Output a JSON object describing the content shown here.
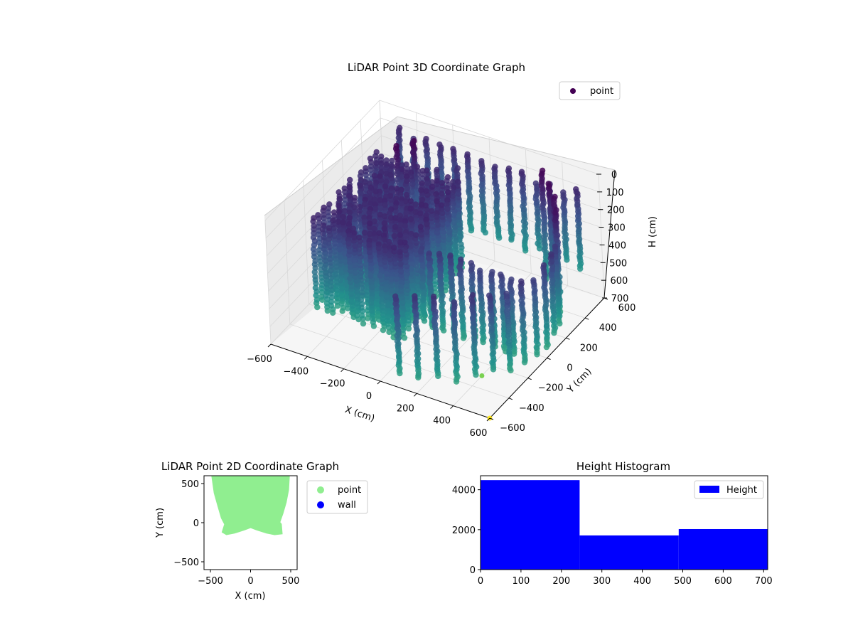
{
  "chart_data": [
    {
      "type": "scatter",
      "projection": "3d",
      "title": "LiDAR Point 3D Coordinate Graph",
      "xlabel": "X (cm)",
      "ylabel": "Y (cm)",
      "zlabel": "H (cm)",
      "xlim": [
        -600,
        600
      ],
      "ylim": [
        -600,
        600
      ],
      "zlim": [
        0,
        700
      ],
      "z_inverted": true,
      "xticks": [
        "−600",
        "−400",
        "−200",
        "0",
        "200",
        "400",
        "600"
      ],
      "yticks": [
        "−600",
        "−400",
        "−200",
        "0",
        "200",
        "400",
        "600"
      ],
      "zticks": [
        "0",
        "100",
        "200",
        "300",
        "400",
        "500",
        "600",
        "700"
      ],
      "colormap": "viridis",
      "legend": {
        "position": "upper-right",
        "entries": [
          {
            "name": "point",
            "color": "#440154"
          }
        ]
      },
      "structures": {
        "front_block": {
          "x_range": [
            -500,
            0
          ],
          "y_range": [
            -300,
            400
          ],
          "h_range": [
            120,
            650
          ]
        },
        "wall_rows": [
          {
            "y": -150,
            "x_range": [
              -50,
              500
            ],
            "h_range": [
              180,
              640
            ]
          },
          {
            "y": 600,
            "x_range": [
              -500,
              500
            ],
            "h_range": [
              120,
              600
            ]
          }
        ],
        "arc": {
          "center": [
            0,
            0
          ],
          "radius": 600,
          "angle_deg": [
            -80,
            60
          ],
          "h_range": [
            0,
            650
          ]
        },
        "posts": [
          [
            -350,
            300,
            0
          ],
          [
            -300,
            380,
            0
          ],
          [
            -200,
            420,
            150
          ],
          [
            -120,
            480,
            150
          ]
        ]
      },
      "outliers": [
        {
          "x": 400,
          "y": -300,
          "h": 700,
          "color": "#7ad151"
        },
        {
          "x": 600,
          "y": -600,
          "h": 700,
          "color": "#fde725"
        }
      ]
    },
    {
      "type": "scatter",
      "title": "LiDAR Point 2D Coordinate Graph",
      "xlabel": "X (cm)",
      "ylabel": "Y (cm)",
      "xlim": [
        -580,
        580
      ],
      "ylim": [
        -600,
        600
      ],
      "xticks": [
        "−500",
        "0",
        "500"
      ],
      "yticks": [
        "−500",
        "0",
        "500"
      ],
      "series": [
        {
          "name": "point",
          "color": "#90ee90"
        },
        {
          "name": "wall",
          "color": "#0000ff"
        }
      ],
      "point_region_outline": [
        [
          -480,
          600
        ],
        [
          480,
          600
        ],
        [
          470,
          420
        ],
        [
          440,
          260
        ],
        [
          400,
          120
        ],
        [
          360,
          5
        ],
        [
          380,
          -20
        ],
        [
          390,
          -140
        ],
        [
          300,
          -150
        ],
        [
          200,
          -130
        ],
        [
          80,
          -90
        ],
        [
          0,
          -60
        ],
        [
          -80,
          -90
        ],
        [
          -200,
          -130
        ],
        [
          -300,
          -150
        ],
        [
          -350,
          -120
        ],
        [
          -320,
          -20
        ],
        [
          -360,
          60
        ],
        [
          -400,
          200
        ],
        [
          -450,
          380
        ]
      ]
    },
    {
      "type": "bar",
      "title": "Height Histogram",
      "xlim": [
        0,
        710
      ],
      "ylim": [
        0,
        4700
      ],
      "xticks": [
        "0",
        "100",
        "200",
        "300",
        "400",
        "500",
        "600",
        "700"
      ],
      "yticks": [
        "0",
        "2000",
        "4000"
      ],
      "color": "#0000ff",
      "legend": {
        "position": "upper-right",
        "entries": [
          {
            "name": "Height",
            "color": "#0000ff"
          }
        ]
      },
      "bins": [
        {
          "x0": 0,
          "x1": 245,
          "count": 4480
        },
        {
          "x0": 245,
          "x1": 490,
          "count": 1710
        },
        {
          "x0": 490,
          "x1": 735,
          "count": 2030
        }
      ]
    }
  ]
}
